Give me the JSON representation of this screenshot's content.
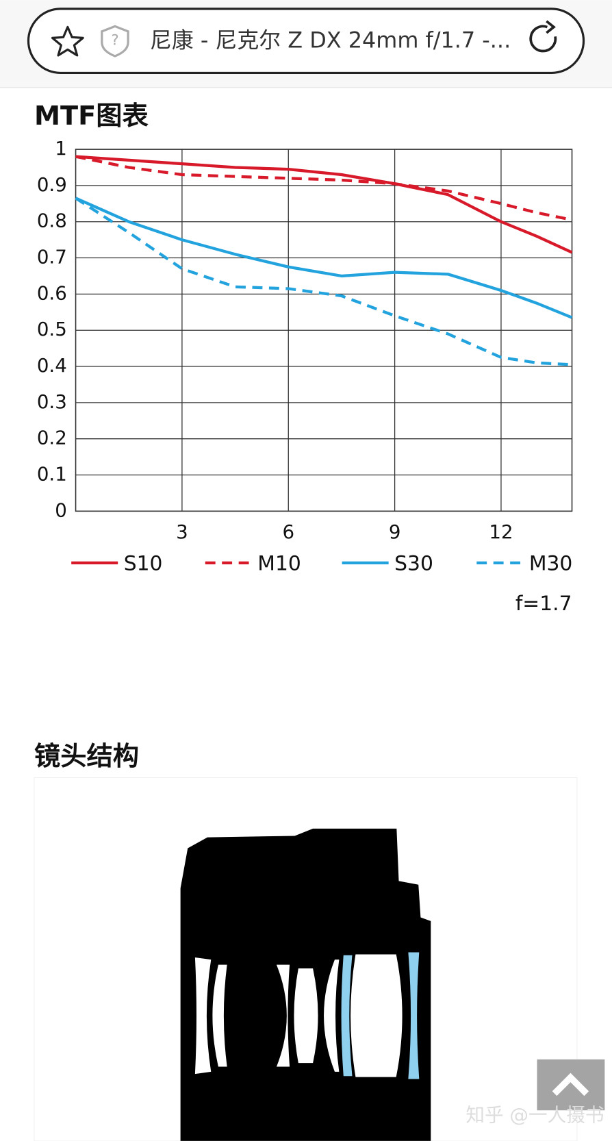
{
  "browser": {
    "address": "尼康 - 尼克尔 Z DX 24mm f/1.7 -..."
  },
  "chart_data": {
    "type": "line",
    "title": "MTF图表",
    "x": [
      0,
      1.5,
      3,
      4.5,
      6,
      7.5,
      9,
      10.5,
      12,
      13,
      14
    ],
    "series": [
      {
        "name": "S10",
        "color": "#d7192a",
        "dashed": false,
        "values": [
          0.98,
          0.97,
          0.96,
          0.95,
          0.945,
          0.93,
          0.905,
          0.875,
          0.8,
          0.76,
          0.715
        ]
      },
      {
        "name": "M10",
        "color": "#d7192a",
        "dashed": true,
        "values": [
          0.98,
          0.95,
          0.93,
          0.925,
          0.92,
          0.915,
          0.905,
          0.885,
          0.85,
          0.825,
          0.805
        ]
      },
      {
        "name": "S30",
        "color": "#22a3dd",
        "dashed": false,
        "values": [
          0.865,
          0.8,
          0.75,
          0.71,
          0.675,
          0.65,
          0.66,
          0.655,
          0.61,
          0.575,
          0.535
        ]
      },
      {
        "name": "M30",
        "color": "#22a3dd",
        "dashed": true,
        "values": [
          0.865,
          0.77,
          0.67,
          0.62,
          0.615,
          0.595,
          0.54,
          0.49,
          0.425,
          0.41,
          0.405
        ]
      }
    ],
    "xlim": [
      0,
      14
    ],
    "xticks": [
      3,
      6,
      9,
      12
    ],
    "ylim": [
      0,
      1
    ],
    "yticks": [
      0,
      0.1,
      0.2,
      0.3,
      0.4,
      0.5,
      0.6,
      0.7,
      0.8,
      0.9,
      1
    ],
    "grid": true,
    "annotation": "f=1.7"
  },
  "section": {
    "title": "镜头结构"
  },
  "watermark": "知乎 @一人摄书"
}
